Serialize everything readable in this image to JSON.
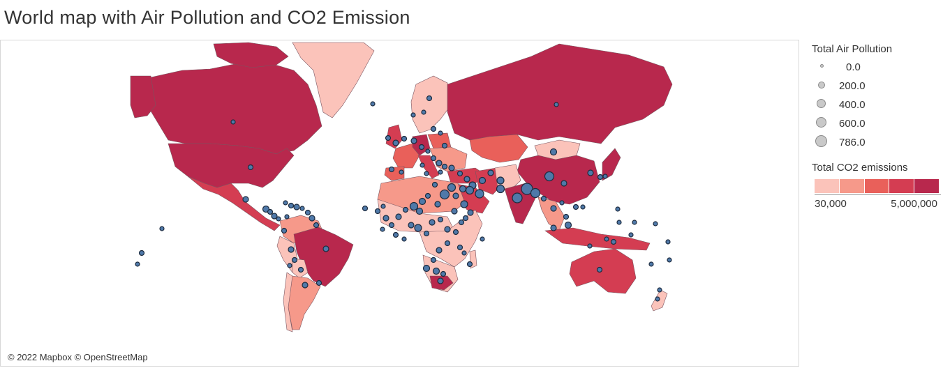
{
  "title": "World map with Air Pollution and CO2 Emission",
  "map": {
    "attribution": "© 2022 Mapbox © OpenStreetMap",
    "colors": {
      "level1": "#fbc3ba",
      "level2": "#f6998a",
      "level3": "#e9605a",
      "level4": "#d43d52",
      "level5": "#b8284d",
      "dot_fill": "#4f79a9",
      "dot_stroke": "#1d2b3e",
      "border": "#7a5560"
    }
  },
  "legend": {
    "air_pollution": {
      "title": "Total Air Pollution",
      "entries": [
        "0.0",
        "200.0",
        "400.0",
        "600.0",
        "786.0"
      ]
    },
    "co2": {
      "title": "Total CO2 emissions",
      "min_label": "30,000",
      "max_label": "5,000,000",
      "colors": [
        "#fbc3ba",
        "#f6998a",
        "#e9605a",
        "#d43d52",
        "#b8284d"
      ]
    }
  }
}
